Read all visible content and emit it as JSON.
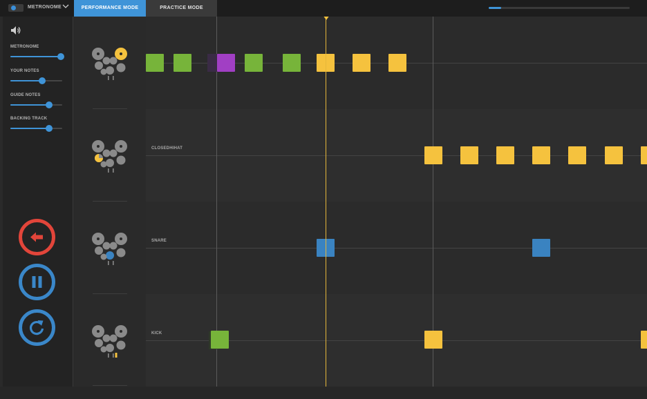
{
  "topbar": {
    "metronome_label": "METRONOME",
    "tabs": [
      {
        "label": "PERFORMANCE MODE",
        "active": true
      },
      {
        "label": "PRACTICE MODE",
        "active": false
      }
    ],
    "progress_fraction": 0.09
  },
  "sidebar": {
    "sliders": [
      {
        "label": "METRONOME",
        "value": 0.97
      },
      {
        "label": "YOUR NOTES",
        "value": 0.61
      },
      {
        "label": "GUIDE NOTES",
        "value": 0.74
      },
      {
        "label": "BACKING TRACK",
        "value": 0.74
      }
    ]
  },
  "lanes": [
    {
      "label": ""
    },
    {
      "label": "CLOSEDHIHAT"
    },
    {
      "label": "SNARE"
    },
    {
      "label": "KICK"
    }
  ],
  "colors": {
    "accent": "#3f94d8",
    "hit": "#77b43a",
    "miss": "#a13fc4",
    "guide": "#f5c23e",
    "snare": "#3a83c1",
    "back": "#e2453a"
  }
}
